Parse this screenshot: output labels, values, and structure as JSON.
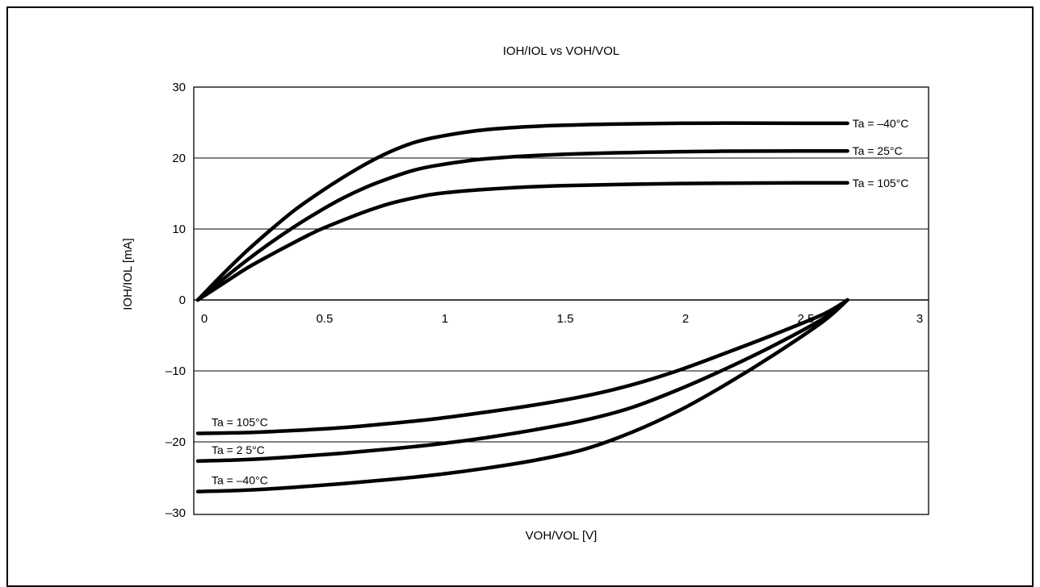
{
  "chart_data": {
    "type": "line",
    "title": "IOH/IOL vs VOH/VOL",
    "xlabel": "VOH/VOL [V]",
    "ylabel": "IOH/IOL [mA]",
    "xlim": [
      0,
      3
    ],
    "ylim": [
      -30,
      30
    ],
    "x_ticks": [
      0,
      0.5,
      1,
      1.5,
      2,
      2.5,
      3
    ],
    "x_tick_labels": [
      "0",
      "0.5",
      "1",
      "1.5",
      "2",
      "2.5",
      "3"
    ],
    "y_ticks": [
      30,
      20,
      10,
      0,
      -10,
      -20,
      -30
    ],
    "y_tick_labels": [
      "30",
      "20",
      "10",
      "0",
      "–10",
      "–20",
      "–30"
    ],
    "grid": "horizontal",
    "series": [
      {
        "name": "Ta = –40°C",
        "points": [
          [
            0,
            0
          ],
          [
            0.1,
            3.5
          ],
          [
            0.2,
            6.8
          ],
          [
            0.3,
            9.8
          ],
          [
            0.4,
            12.6
          ],
          [
            0.5,
            15
          ],
          [
            0.6,
            17.2
          ],
          [
            0.7,
            19.2
          ],
          [
            0.8,
            20.9
          ],
          [
            0.9,
            22.2
          ],
          [
            1,
            23
          ],
          [
            1.2,
            24
          ],
          [
            1.5,
            24.6
          ],
          [
            2,
            24.9
          ],
          [
            2.5,
            24.9
          ],
          [
            2.7,
            24.9
          ]
        ]
      },
      {
        "name": "Ta = 25°C",
        "points": [
          [
            0,
            0
          ],
          [
            0.1,
            2.8
          ],
          [
            0.2,
            5.5
          ],
          [
            0.3,
            8
          ],
          [
            0.4,
            10.3
          ],
          [
            0.5,
            12.4
          ],
          [
            0.6,
            14.3
          ],
          [
            0.7,
            15.9
          ],
          [
            0.8,
            17.2
          ],
          [
            0.9,
            18.3
          ],
          [
            1,
            19
          ],
          [
            1.2,
            19.9
          ],
          [
            1.5,
            20.5
          ],
          [
            2,
            20.9
          ],
          [
            2.5,
            21
          ],
          [
            2.7,
            21
          ]
        ]
      },
      {
        "name": "Ta = 105°C",
        "points": [
          [
            0,
            0
          ],
          [
            0.1,
            2.2
          ],
          [
            0.2,
            4.4
          ],
          [
            0.3,
            6.3
          ],
          [
            0.4,
            8.1
          ],
          [
            0.5,
            9.8
          ],
          [
            0.6,
            11.2
          ],
          [
            0.7,
            12.5
          ],
          [
            0.8,
            13.6
          ],
          [
            0.9,
            14.4
          ],
          [
            1,
            15
          ],
          [
            1.2,
            15.6
          ],
          [
            1.5,
            16.1
          ],
          [
            2,
            16.4
          ],
          [
            2.5,
            16.5
          ],
          [
            2.7,
            16.5
          ]
        ]
      },
      {
        "name": "Ta = 105°C",
        "points": [
          [
            0,
            -18.8
          ],
          [
            0.2,
            -18.7
          ],
          [
            0.4,
            -18.4
          ],
          [
            0.6,
            -18
          ],
          [
            0.8,
            -17.4
          ],
          [
            1,
            -16.7
          ],
          [
            1.2,
            -15.8
          ],
          [
            1.4,
            -14.8
          ],
          [
            1.6,
            -13.6
          ],
          [
            1.8,
            -12
          ],
          [
            2,
            -9.9
          ],
          [
            2.2,
            -7.4
          ],
          [
            2.4,
            -4.8
          ],
          [
            2.6,
            -2
          ],
          [
            2.7,
            0
          ]
        ]
      },
      {
        "name": "Ta = 2 5°C",
        "points": [
          [
            0,
            -22.7
          ],
          [
            0.2,
            -22.5
          ],
          [
            0.4,
            -22.1
          ],
          [
            0.6,
            -21.6
          ],
          [
            0.8,
            -21
          ],
          [
            1,
            -20.3
          ],
          [
            1.2,
            -19.4
          ],
          [
            1.4,
            -18.3
          ],
          [
            1.6,
            -17
          ],
          [
            1.8,
            -15.2
          ],
          [
            2,
            -12.6
          ],
          [
            2.2,
            -9.6
          ],
          [
            2.4,
            -6.3
          ],
          [
            2.6,
            -2.6
          ],
          [
            2.7,
            0
          ]
        ]
      },
      {
        "name": "Ta = –40°C",
        "points": [
          [
            0,
            -27
          ],
          [
            0.2,
            -26.8
          ],
          [
            0.4,
            -26.4
          ],
          [
            0.6,
            -25.9
          ],
          [
            0.8,
            -25.3
          ],
          [
            1,
            -24.6
          ],
          [
            1.2,
            -23.7
          ],
          [
            1.4,
            -22.6
          ],
          [
            1.6,
            -21.1
          ],
          [
            1.8,
            -18.7
          ],
          [
            2,
            -15.6
          ],
          [
            2.2,
            -11.8
          ],
          [
            2.4,
            -7.6
          ],
          [
            2.6,
            -3
          ],
          [
            2.7,
            0
          ]
        ]
      }
    ]
  }
}
